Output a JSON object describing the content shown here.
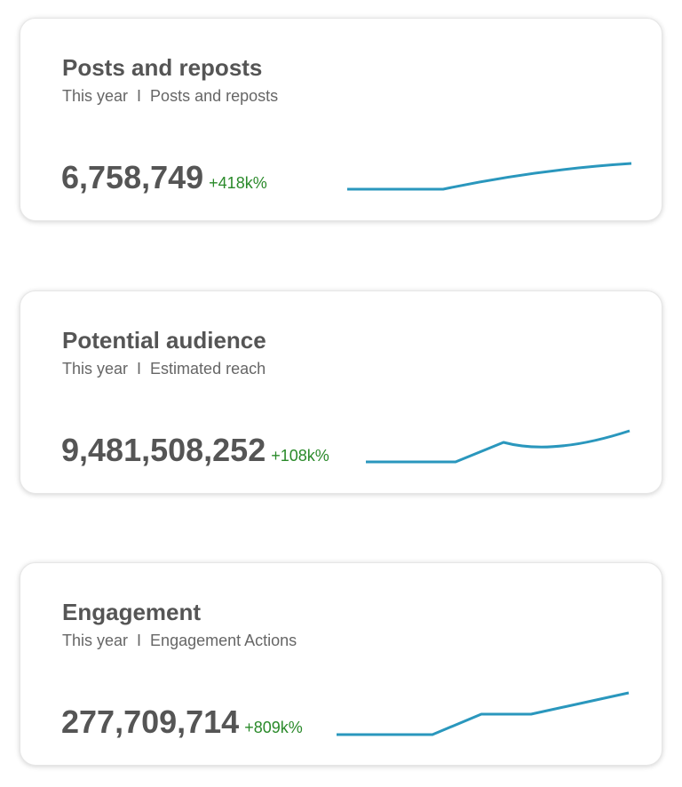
{
  "cards": [
    {
      "title": "Posts and reposts",
      "period": "This year",
      "separator": "I",
      "metric": "Posts and reposts",
      "value": "6,758,749",
      "delta": "+418k%"
    },
    {
      "title": "Potential audience",
      "period": "This year",
      "separator": "I",
      "metric": "Estimated reach",
      "value": "9,481,508,252",
      "delta": "+108k%"
    },
    {
      "title": "Engagement",
      "period": "This year",
      "separator": "I",
      "metric": "Engagement Actions",
      "value": "277,709,714",
      "delta": "+809k%"
    }
  ],
  "colors": {
    "sparkline": "#2a97bd",
    "delta_positive": "#2a8a2a",
    "text": "#555555"
  }
}
